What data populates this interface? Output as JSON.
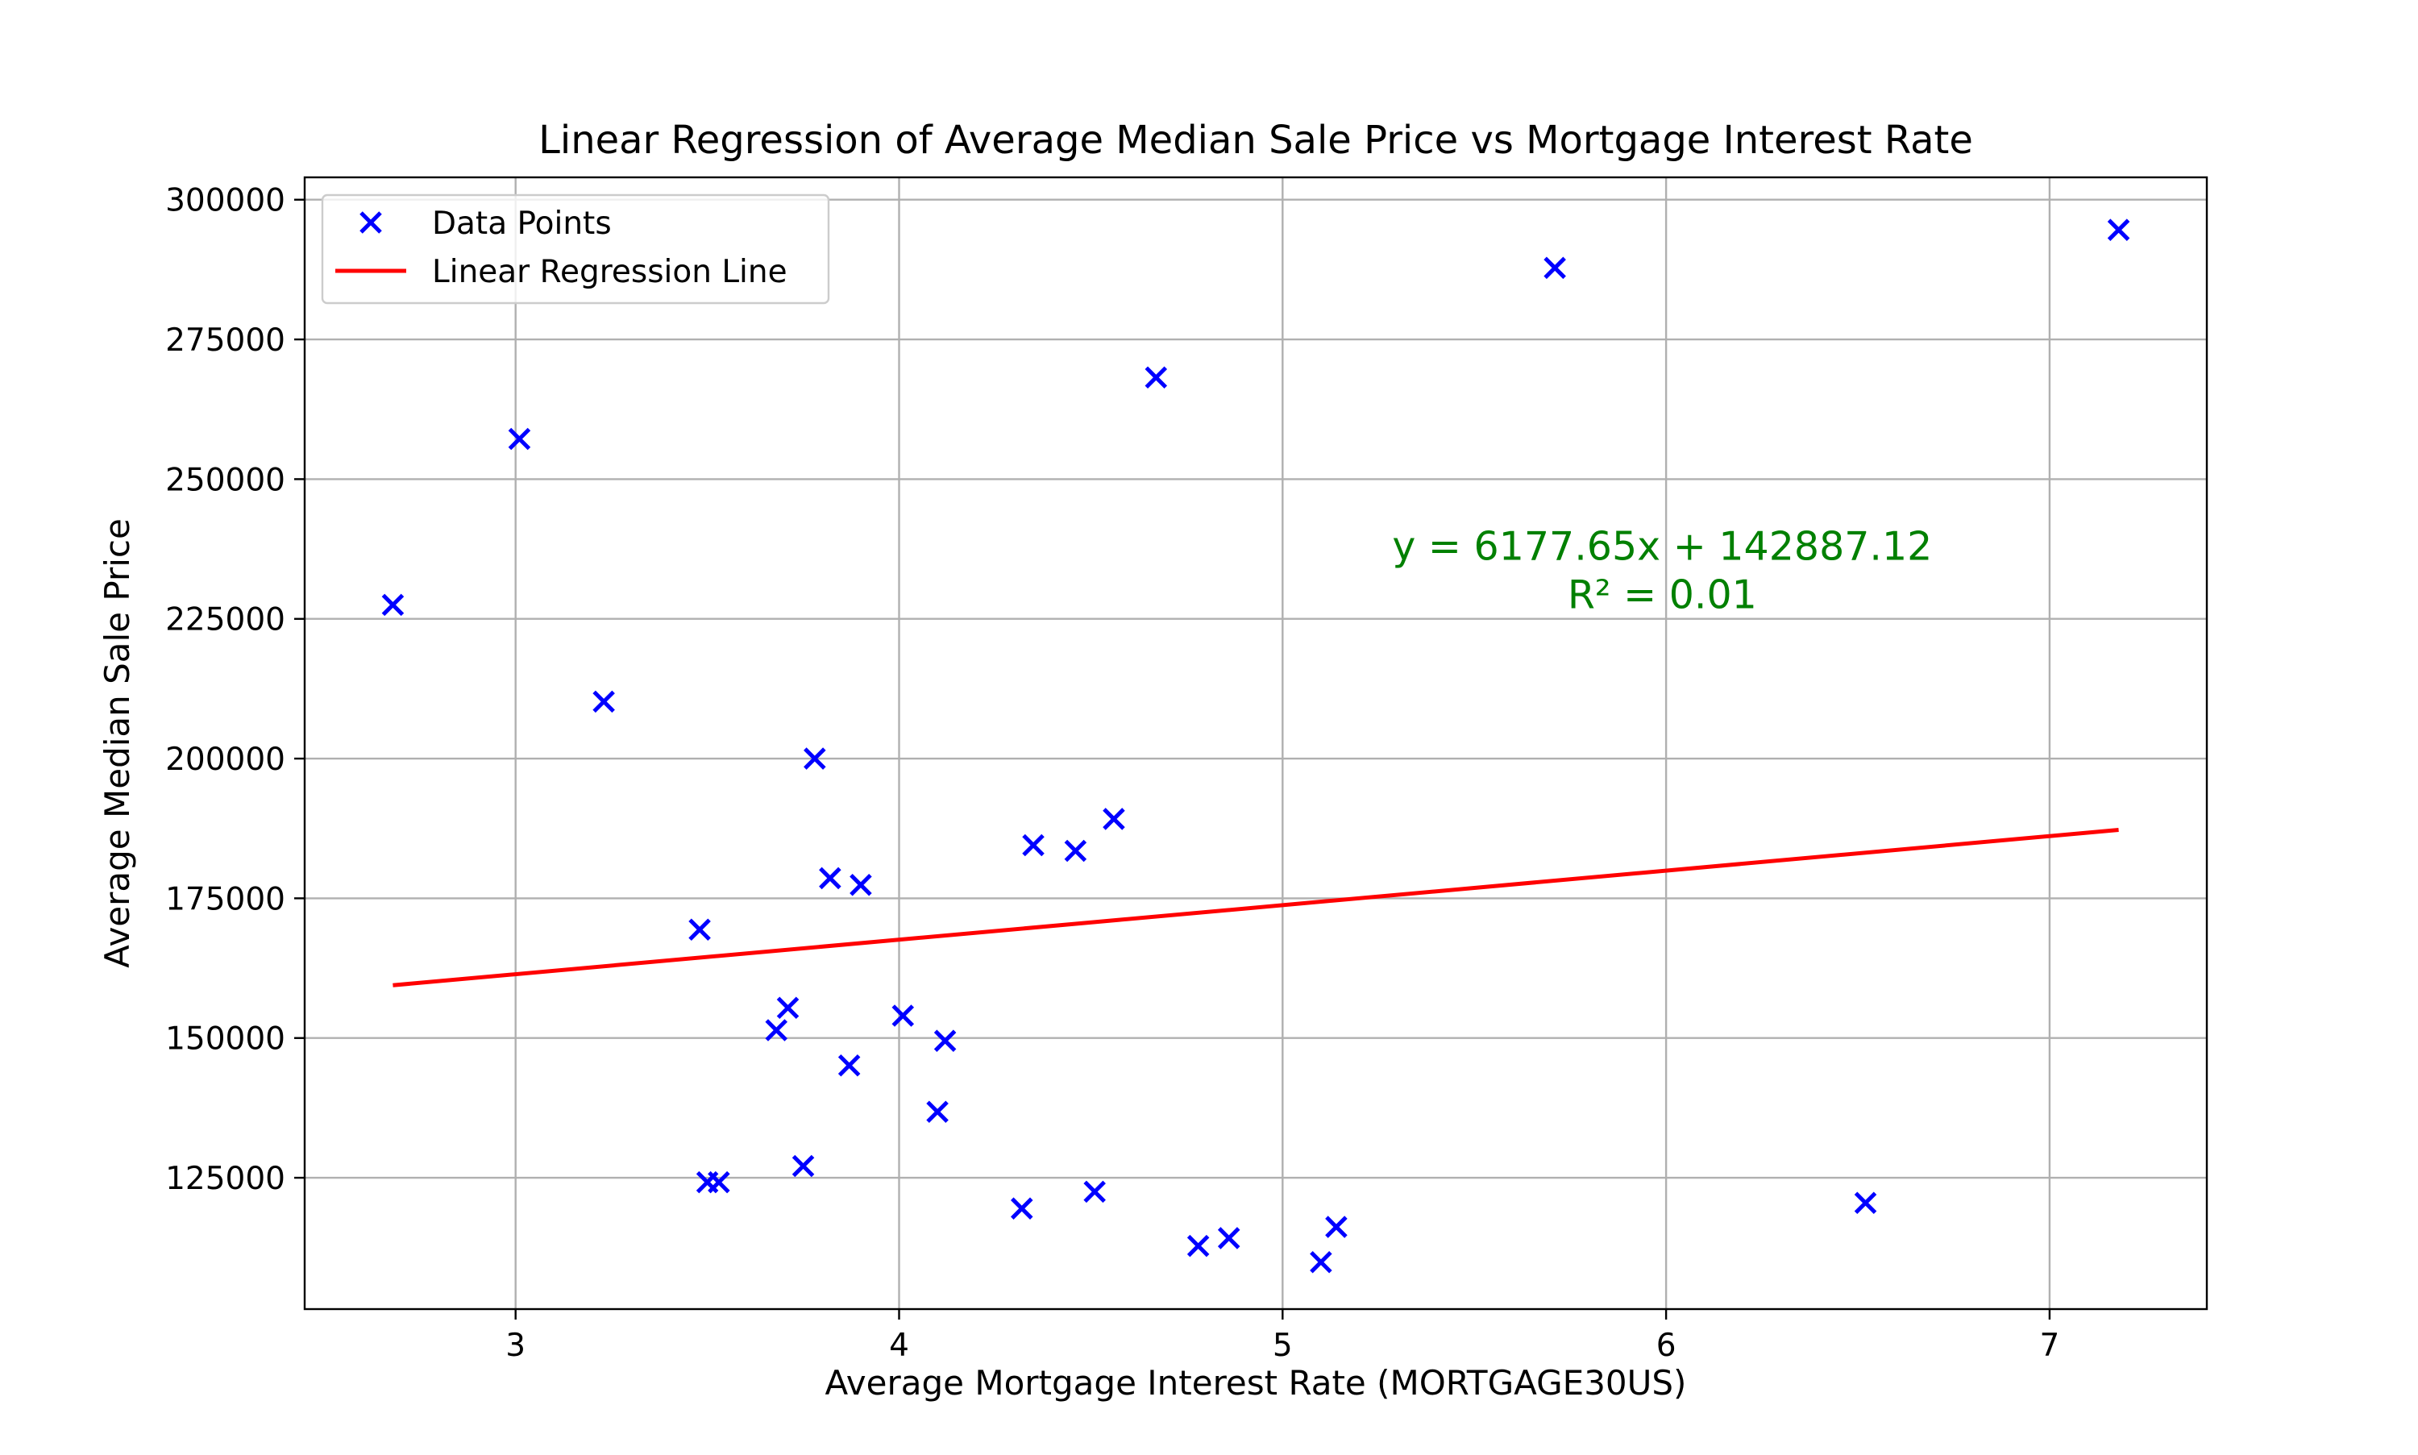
{
  "chart_data": {
    "type": "scatter",
    "title": "Linear Regression of Average Median Sale Price vs Mortgage Interest Rate",
    "xlabel": "Average Mortgage Interest Rate (MORTGAGE30US)",
    "ylabel": "Average Median Sale Price",
    "xlim": [
      2.45,
      7.41
    ],
    "ylim": [
      101500,
      304000
    ],
    "x_ticks": [
      3,
      4,
      5,
      6,
      7
    ],
    "x_tick_labels": [
      "3",
      "4",
      "5",
      "6",
      "7"
    ],
    "y_ticks": [
      125000,
      150000,
      175000,
      200000,
      225000,
      250000,
      275000,
      300000
    ],
    "y_tick_labels": [
      "125000",
      "150000",
      "175000",
      "200000",
      "225000",
      "250000",
      "275000",
      "300000"
    ],
    "grid": true,
    "legend": {
      "placement": "top-left",
      "entries": [
        {
          "label": "Data Points",
          "marker": "x",
          "color": "#0000ff"
        },
        {
          "label": "Linear Regression Line",
          "marker": "line",
          "color": "#ff0000"
        }
      ]
    },
    "series": [
      {
        "name": "Data Points",
        "kind": "scatter",
        "marker": "x",
        "color": "#0000ff",
        "points": [
          {
            "x": 2.68,
            "y": 227500
          },
          {
            "x": 3.01,
            "y": 257200
          },
          {
            "x": 3.23,
            "y": 210200
          },
          {
            "x": 3.48,
            "y": 169400
          },
          {
            "x": 3.5,
            "y": 124200
          },
          {
            "x": 3.53,
            "y": 124200
          },
          {
            "x": 3.68,
            "y": 151400
          },
          {
            "x": 3.71,
            "y": 155400
          },
          {
            "x": 3.75,
            "y": 127100
          },
          {
            "x": 3.78,
            "y": 200000
          },
          {
            "x": 3.82,
            "y": 178600
          },
          {
            "x": 3.87,
            "y": 145100
          },
          {
            "x": 3.9,
            "y": 177400
          },
          {
            "x": 4.01,
            "y": 154000
          },
          {
            "x": 4.1,
            "y": 136800
          },
          {
            "x": 4.12,
            "y": 149500
          },
          {
            "x": 4.32,
            "y": 119500
          },
          {
            "x": 4.35,
            "y": 184500
          },
          {
            "x": 4.46,
            "y": 183500
          },
          {
            "x": 4.51,
            "y": 122500
          },
          {
            "x": 4.56,
            "y": 189200
          },
          {
            "x": 4.67,
            "y": 268200
          },
          {
            "x": 4.78,
            "y": 112800
          },
          {
            "x": 4.86,
            "y": 114200
          },
          {
            "x": 5.1,
            "y": 109900
          },
          {
            "x": 5.14,
            "y": 116200
          },
          {
            "x": 5.71,
            "y": 287800
          },
          {
            "x": 6.52,
            "y": 120500
          },
          {
            "x": 7.18,
            "y": 294600
          }
        ]
      },
      {
        "name": "Linear Regression Line",
        "kind": "line",
        "color": "#ff0000",
        "points": [
          {
            "x": 2.68,
            "y": 159443
          },
          {
            "x": 7.18,
            "y": 187243
          }
        ]
      }
    ],
    "annotation": {
      "lines": [
        "y = 6177.65x + 142887.12",
        "R² = 0.01"
      ],
      "color": "#008000",
      "anchor_x": 5.99,
      "anchor_y": 235000
    }
  }
}
